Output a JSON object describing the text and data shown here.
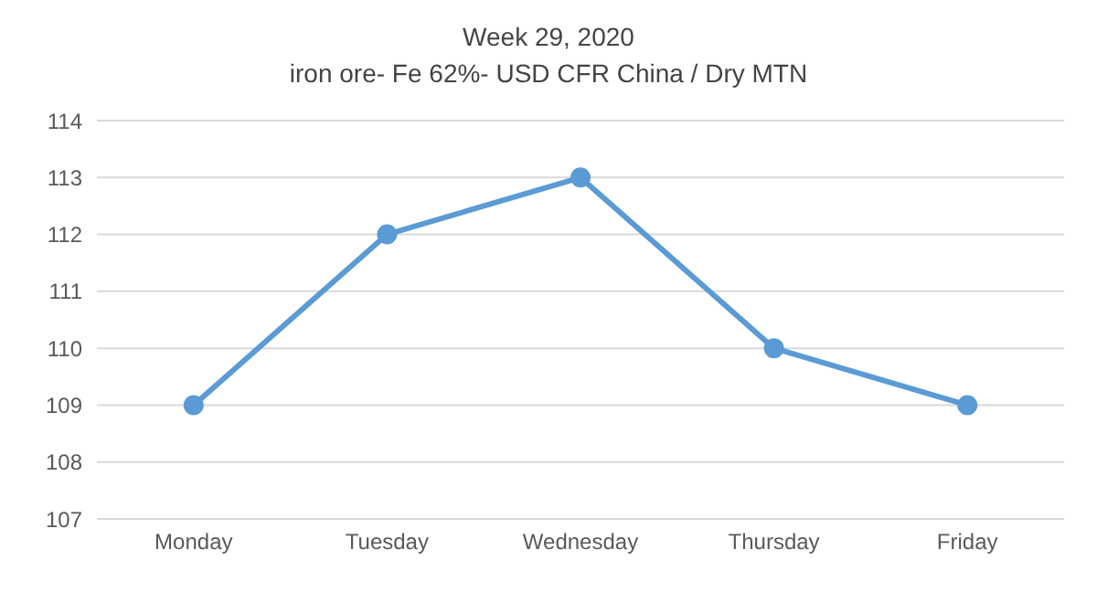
{
  "chart_data": {
    "type": "line",
    "title": "Week  29, 2020",
    "subtitle": "iron ore- Fe 62%- USD CFR China / Dry MTN",
    "categories": [
      "Monday",
      "Tuesday",
      "Wednesday",
      "Thursday",
      "Friday"
    ],
    "series": [
      {
        "color": "#5b9bd5",
        "values": [
          109,
          112,
          113,
          110,
          109
        ]
      }
    ],
    "ylim": [
      107,
      114
    ],
    "yticks": [
      107,
      108,
      109,
      110,
      111,
      112,
      113,
      114
    ],
    "grid": "y",
    "marker": "circle",
    "line_style": "solid"
  }
}
